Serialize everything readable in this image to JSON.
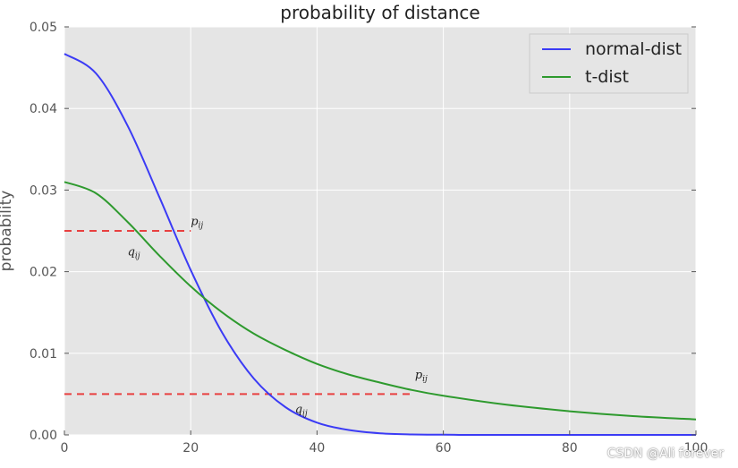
{
  "chart_data": {
    "type": "line",
    "title": "probability of distance",
    "ylabel": "probability",
    "xlabel": "",
    "xlim": [
      0,
      100
    ],
    "ylim": [
      0,
      0.05
    ],
    "xticks": [
      0,
      20,
      40,
      60,
      80,
      100
    ],
    "xtick_labels": [
      "0",
      "20",
      "40",
      "60",
      "80",
      "100"
    ],
    "yticks": [
      0,
      0.01,
      0.02,
      0.03,
      0.04,
      0.05
    ],
    "ytick_labels": [
      "0.00",
      "0.01",
      "0.02",
      "0.03",
      "0.04",
      "0.05"
    ],
    "grid": true,
    "legend": "top-right",
    "series": [
      {
        "name": "normal-dist",
        "color": "#3b3bf5",
        "x": [
          0,
          5,
          10,
          15,
          20,
          25,
          30,
          35,
          40,
          45,
          50,
          55,
          60,
          65,
          70,
          80,
          90,
          100
        ],
        "y": [
          0.0467,
          0.0443,
          0.0379,
          0.0292,
          0.0202,
          0.0125,
          0.0069,
          0.0034,
          0.0015,
          0.0006,
          0.0002,
          6e-05,
          2e-05,
          0.0,
          0.0,
          0.0,
          0.0,
          0.0
        ]
      },
      {
        "name": "t-dist",
        "color": "#2e9a2e",
        "x": [
          0,
          5,
          10,
          15,
          20,
          25,
          30,
          35,
          40,
          45,
          50,
          55,
          60,
          70,
          80,
          90,
          100
        ],
        "y": [
          0.031,
          0.0296,
          0.0261,
          0.022,
          0.0182,
          0.015,
          0.0124,
          0.0104,
          0.0087,
          0.0074,
          0.0064,
          0.0055,
          0.0048,
          0.0037,
          0.0029,
          0.0023,
          0.0019
        ]
      }
    ],
    "reference_lines": [
      {
        "x0": 0,
        "x1": 20,
        "y": 0.025,
        "color": "#e84040",
        "style": "dashed"
      },
      {
        "x0": 0,
        "x1": 55,
        "y": 0.005,
        "color": "#e84040",
        "style": "dashed"
      }
    ],
    "annotations": [
      {
        "base": "p",
        "sub": "ij",
        "x": 20,
        "y": 0.0257
      },
      {
        "base": "q",
        "sub": "ij",
        "x": 10,
        "y": 0.022
      },
      {
        "base": "p",
        "sub": "ij",
        "x": 55.5,
        "y": 0.0069
      },
      {
        "base": "q",
        "sub": "ij",
        "x": 36.5,
        "y": 0.0027
      }
    ]
  },
  "watermark": "CSDN @Ali forever"
}
